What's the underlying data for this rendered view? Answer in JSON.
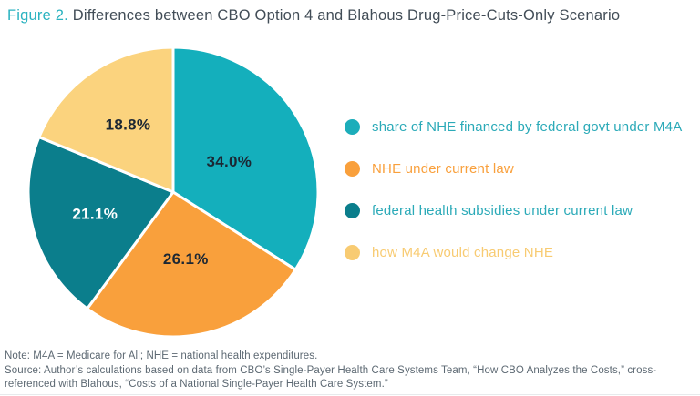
{
  "title": {
    "prefix": "Figure 2.",
    "text": " Differences between CBO Option 4 and Blahous Drug-Price-Cuts-Only Scenario"
  },
  "chart_data": {
    "type": "pie",
    "title": "Differences between CBO Option 4 and Blahous Drug-Price-Cuts-Only Scenario",
    "start_angle_deg": 0,
    "direction": "clockwise",
    "legend_position": "right",
    "slices": [
      {
        "label": "share of NHE financed by federal govt under M4A",
        "value": 34.0,
        "display": "34.0%",
        "color": "#14afbc",
        "label_color": "#1c2733"
      },
      {
        "label": "NHE under current law",
        "value": 26.1,
        "display": "26.1%",
        "color": "#f9a03c",
        "label_color": "#1c2733"
      },
      {
        "label": "federal health subsidies under current law",
        "value": 21.1,
        "display": "21.1%",
        "color": "#0b7e8c",
        "label_color": "#ffffff"
      },
      {
        "label": "how M4A would change NHE",
        "value": 18.8,
        "display": "18.8%",
        "color": "#fbd37e",
        "label_color": "#1c2733"
      }
    ]
  },
  "legend": {
    "items": [
      {
        "label": "share of NHE financed by federal govt under M4A",
        "dot_color": "#1cadba",
        "text_color": "#2baab8"
      },
      {
        "label": "NHE under current law",
        "dot_color": "#f9a03c",
        "text_color": "#f9a03c"
      },
      {
        "label": "federal health subsidies under current law",
        "dot_color": "#0b7e8c",
        "text_color": "#2baab8"
      },
      {
        "label": "how M4A would change NHE",
        "dot_color": "#f8cb72",
        "text_color": "#f8cb72"
      }
    ]
  },
  "notes": {
    "note": "Note: M4A = Medicare for All; NHE = national health expenditures.",
    "source_line1": "Source: Author’s calculations based on data from CBO’s Single-Payer Health Care Systems Team, “How CBO Analyzes the Costs,” cross-",
    "source_line2": "referenced with Blahous, “Costs of a National Single-Payer Health Care System.”"
  }
}
